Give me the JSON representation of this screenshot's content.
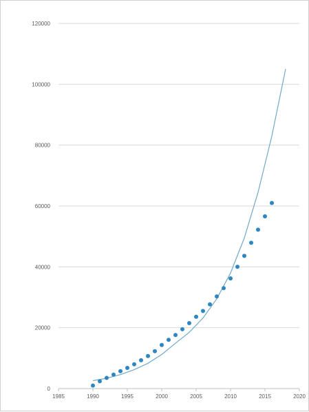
{
  "chart_data": {
    "type": "scatter",
    "title": "",
    "xlabel": "",
    "ylabel": "",
    "xlim": [
      1985,
      2020
    ],
    "ylim": [
      0,
      120000
    ],
    "grid": true,
    "legend": "none",
    "xticks": [
      "1985",
      "1990",
      "1995",
      "2000",
      "2005",
      "2010",
      "2015",
      "2020"
    ],
    "yticks": [
      "0",
      "20000",
      "40000",
      "60000",
      "80000",
      "100000",
      "120000"
    ],
    "colors": {
      "points": "#2e86c1",
      "trendline": "#6fa8c8",
      "grid": "#d9d9d9",
      "axis": "#bfbfbf"
    },
    "series": [
      {
        "kind": "points",
        "x": [
          1990,
          1991,
          1992,
          1993,
          1994,
          1995,
          1996,
          1997,
          1998,
          1999,
          2000,
          2001,
          2002,
          2003,
          2004,
          2005,
          2006,
          2007,
          2008,
          2009,
          2010,
          2011,
          2012,
          2013,
          2014,
          2015,
          2016
        ],
        "y": [
          1000,
          2400,
          3500,
          4600,
          5700,
          6800,
          8000,
          9300,
          10700,
          12300,
          14300,
          16000,
          17600,
          19500,
          21500,
          23600,
          25500,
          27700,
          30300,
          33000,
          36200,
          40000,
          43600,
          47900,
          52200,
          56600,
          61000
        ]
      },
      {
        "kind": "trendline",
        "x": [
          1990,
          1992,
          1994,
          1996,
          1998,
          2000,
          2002,
          2004,
          2006,
          2008,
          2010,
          2012,
          2014,
          2016,
          2018
        ],
        "y": [
          2600,
          3400,
          4600,
          6200,
          8300,
          11200,
          14900,
          18500,
          23200,
          29500,
          38000,
          49500,
          64500,
          83000,
          105000
        ]
      }
    ]
  }
}
